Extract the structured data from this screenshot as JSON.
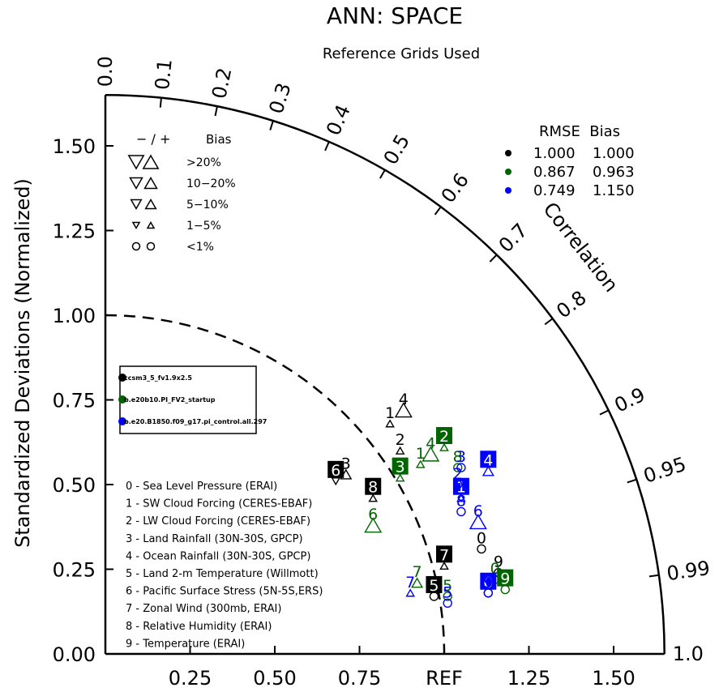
{
  "chart_data": {
    "type": "taylor",
    "title": "ANN: SPACE",
    "subtitle": "Reference Grids Used",
    "ylabel": "Standardized Deviations (Normalized)",
    "corr_axis_label": "Correlation",
    "std_range": [
      0,
      1.65
    ],
    "y_ticks": [
      {
        "v": 0.0,
        "label": "0.00"
      },
      {
        "v": 0.25,
        "label": "0.25"
      },
      {
        "v": 0.5,
        "label": "0.50"
      },
      {
        "v": 0.75,
        "label": "0.75"
      },
      {
        "v": 1.0,
        "label": "1.00"
      },
      {
        "v": 1.25,
        "label": "1.25"
      },
      {
        "v": 1.5,
        "label": "1.50"
      }
    ],
    "x_ticks": [
      {
        "v": 0.25,
        "label": "0.25"
      },
      {
        "v": 0.5,
        "label": "0.50"
      },
      {
        "v": 0.75,
        "label": "0.75"
      },
      {
        "v": 1.0,
        "label": "REF"
      },
      {
        "v": 1.25,
        "label": "1.25"
      },
      {
        "v": 1.5,
        "label": "1.50"
      }
    ],
    "corr_ticks": [
      {
        "v": 0.0,
        "label": "0.0"
      },
      {
        "v": 0.1,
        "label": "0.1"
      },
      {
        "v": 0.2,
        "label": "0.2"
      },
      {
        "v": 0.3,
        "label": "0.3"
      },
      {
        "v": 0.4,
        "label": "0.4"
      },
      {
        "v": 0.5,
        "label": "0.5"
      },
      {
        "v": 0.6,
        "label": "0.6"
      },
      {
        "v": 0.7,
        "label": "0.7"
      },
      {
        "v": 0.8,
        "label": "0.8"
      },
      {
        "v": 0.9,
        "label": "0.9"
      },
      {
        "v": 0.95,
        "label": "0.95"
      },
      {
        "v": 0.99,
        "label": "0.99"
      },
      {
        "v": 1.0,
        "label": "1.0"
      }
    ],
    "reference_std": 1.0,
    "bias_legend": {
      "header_symbols": "−  /  +",
      "header_label": "Bias",
      "rows": [
        {
          "label": ">20%",
          "size": 4
        },
        {
          "label": "10−20%",
          "size": 3
        },
        {
          "label": "5−10%",
          "size": 2
        },
        {
          "label": "1−5%",
          "size": 1
        },
        {
          "label": "<1%",
          "size": 0
        }
      ]
    },
    "summary_header": "RMSE  Bias",
    "models": [
      {
        "name": "ccsm3_5_fv1.9x2.5",
        "color": "#000000",
        "rmse": "1.000",
        "bias": "1.000"
      },
      {
        "name": "b.e20b10.PI_FV2_startup",
        "color": "#006400",
        "rmse": "0.867",
        "bias": "0.963"
      },
      {
        "name": "b.e20.B1850.f09_g17.pi_control.all.297",
        "color": "#0000ff",
        "rmse": "0.749",
        "bias": "1.150"
      }
    ],
    "variables": [
      "0 - Sea Level Pressure (ERAI)",
      "1 - SW Cloud Forcing (CERES-EBAF)",
      "2 - LW Cloud Forcing (CERES-EBAF)",
      "3 - Land Rainfall (30N-30S, GPCP)",
      "4 - Ocean Rainfall (30N-30S, GPCP)",
      "5 - Land 2-m Temperature (Willmott)",
      "6 - Pacific Surface Stress (5N-5S,ERS)",
      "7 - Zonal Wind (300mb, ERAI)",
      "8 - Relative Humidity (ERAI)",
      "9 - Temperature (ERAI)"
    ],
    "points": [
      {
        "model": 0,
        "var": "0",
        "x": 1.11,
        "y": 0.31,
        "boxed": false,
        "marker": "circle",
        "size": 0
      },
      {
        "model": 0,
        "var": "1",
        "x": 0.84,
        "y": 0.68,
        "boxed": false,
        "marker": "up",
        "size": 1
      },
      {
        "model": 0,
        "var": "2",
        "x": 0.87,
        "y": 0.6,
        "boxed": false,
        "marker": "up",
        "size": 1
      },
      {
        "model": 0,
        "var": "3",
        "x": 0.71,
        "y": 0.53,
        "boxed": false,
        "marker": "up",
        "size": 2
      },
      {
        "model": 0,
        "var": "4",
        "x": 0.88,
        "y": 0.72,
        "boxed": false,
        "marker": "up",
        "size": 4
      },
      {
        "model": 0,
        "var": "5",
        "x": 0.97,
        "y": 0.17,
        "boxed": true,
        "marker": "circle",
        "size": 0
      },
      {
        "model": 0,
        "var": "6",
        "x": 0.68,
        "y": 0.51,
        "boxed": true,
        "marker": "down",
        "size": 1
      },
      {
        "model": 0,
        "var": "7",
        "x": 1.0,
        "y": 0.26,
        "boxed": true,
        "marker": "up",
        "size": 1
      },
      {
        "model": 0,
        "var": "8",
        "x": 0.79,
        "y": 0.46,
        "boxed": true,
        "marker": "up",
        "size": 1
      },
      {
        "model": 0,
        "var": "9",
        "x": 1.16,
        "y": 0.24,
        "boxed": false,
        "marker": "circle",
        "size": 0
      },
      {
        "model": 1,
        "var": "0",
        "x": 1.15,
        "y": 0.22,
        "boxed": false,
        "marker": "circle",
        "size": 0
      },
      {
        "model": 1,
        "var": "1",
        "x": 0.93,
        "y": 0.56,
        "boxed": false,
        "marker": "up",
        "size": 1
      },
      {
        "model": 1,
        "var": "2",
        "x": 1.0,
        "y": 0.61,
        "boxed": true,
        "marker": "up",
        "size": 1
      },
      {
        "model": 1,
        "var": "3",
        "x": 0.87,
        "y": 0.52,
        "boxed": true,
        "marker": "up",
        "size": 1
      },
      {
        "model": 1,
        "var": "4",
        "x": 0.96,
        "y": 0.59,
        "boxed": false,
        "marker": "up",
        "size": 4
      },
      {
        "model": 1,
        "var": "5",
        "x": 1.01,
        "y": 0.17,
        "boxed": false,
        "marker": "circle",
        "size": 0
      },
      {
        "model": 1,
        "var": "6",
        "x": 0.79,
        "y": 0.38,
        "boxed": false,
        "marker": "up",
        "size": 4
      },
      {
        "model": 1,
        "var": "7",
        "x": 0.92,
        "y": 0.21,
        "boxed": false,
        "marker": "up",
        "size": 2
      },
      {
        "model": 1,
        "var": "8",
        "x": 1.04,
        "y": 0.55,
        "boxed": false,
        "marker": "circle",
        "size": 0
      },
      {
        "model": 1,
        "var": "9",
        "x": 1.18,
        "y": 0.19,
        "boxed": true,
        "marker": "circle",
        "size": 0
      },
      {
        "model": 2,
        "var": "0",
        "x": 1.13,
        "y": 0.18,
        "boxed": true,
        "marker": "circle",
        "size": 0
      },
      {
        "model": 2,
        "var": "1",
        "x": 1.05,
        "y": 0.46,
        "boxed": true,
        "marker": "up",
        "size": 1
      },
      {
        "model": 2,
        "var": "2",
        "x": 1.04,
        "y": 0.5,
        "boxed": false,
        "marker": "circle",
        "size": 0
      },
      {
        "model": 2,
        "var": "3",
        "x": 1.05,
        "y": 0.55,
        "boxed": false,
        "marker": "circle",
        "size": 0
      },
      {
        "model": 2,
        "var": "4",
        "x": 1.13,
        "y": 0.54,
        "boxed": true,
        "marker": "up",
        "size": 2
      },
      {
        "model": 2,
        "var": "5",
        "x": 1.01,
        "y": 0.15,
        "boxed": false,
        "marker": "circle",
        "size": 0
      },
      {
        "model": 2,
        "var": "6",
        "x": 1.1,
        "y": 0.39,
        "boxed": false,
        "marker": "up",
        "size": 4
      },
      {
        "model": 2,
        "var": "7",
        "x": 0.9,
        "y": 0.18,
        "boxed": false,
        "marker": "up",
        "size": 1
      },
      {
        "model": 2,
        "var": "8",
        "x": 1.05,
        "y": 0.42,
        "boxed": false,
        "marker": "circle",
        "size": 0
      },
      {
        "model": 2,
        "var": "9",
        "x": 1.13,
        "y": 0.18,
        "boxed": false,
        "marker": "circle",
        "size": 0
      }
    ]
  }
}
